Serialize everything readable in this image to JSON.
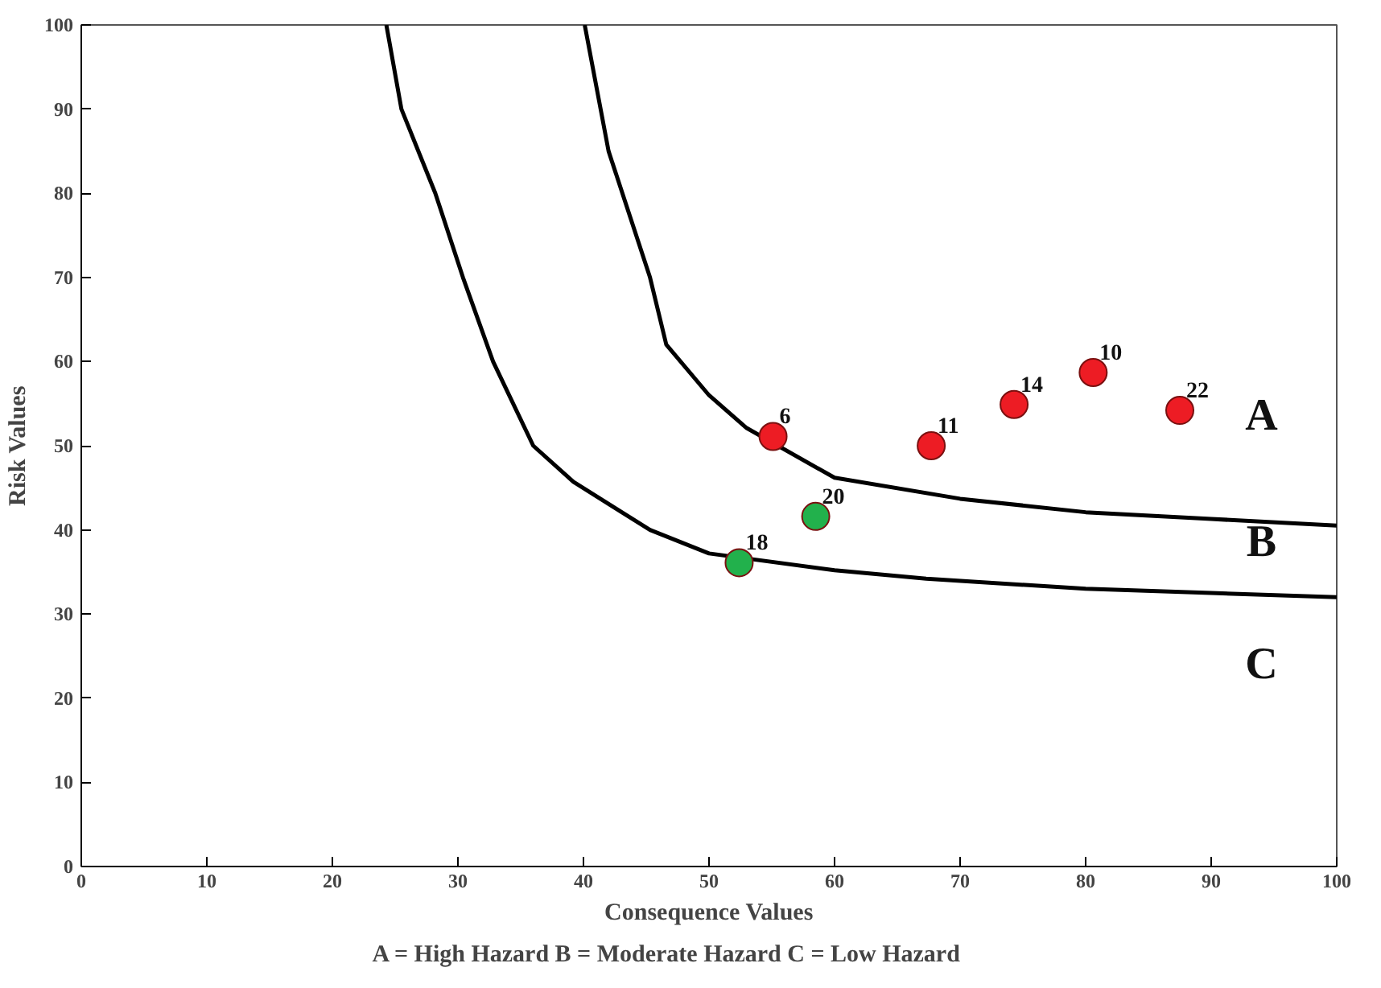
{
  "chart_data": {
    "type": "scatter",
    "xlabel": "Consequence Values",
    "ylabel": "Risk Values",
    "xlim": [
      0,
      100
    ],
    "ylim": [
      0,
      100
    ],
    "xticks": [
      0,
      10,
      20,
      30,
      40,
      50,
      60,
      70,
      80,
      90,
      100
    ],
    "yticks": [
      0,
      10,
      20,
      30,
      40,
      50,
      60,
      70,
      80,
      90,
      100
    ],
    "grid": false,
    "marker": "circle",
    "series": [
      {
        "type": "line",
        "color": "#000000",
        "marker": "none",
        "line_style": "solid",
        "x": [
          40.1,
          42,
          45.3,
          46.6,
          50,
          53,
          60,
          70,
          80,
          90,
          100
        ],
        "values": [
          100,
          85,
          70,
          62,
          56,
          52.1,
          46.2,
          43.7,
          42.1,
          41.3,
          40.5
        ]
      },
      {
        "type": "line",
        "color": "#000000",
        "marker": "none",
        "line_style": "solid",
        "x": [
          24.3,
          25.5,
          28.2,
          30.4,
          32.8,
          36,
          39.2,
          45.3,
          50,
          60,
          67.3,
          80,
          90,
          100
        ],
        "values": [
          100,
          90,
          80,
          70,
          60,
          50,
          45.7,
          40,
          37.2,
          35.2,
          34.2,
          33,
          32.5,
          32
        ]
      },
      {
        "color": "#ed1c24",
        "x": [
          55.1,
          67.7,
          74.3,
          80.6,
          87.5
        ],
        "values": [
          51.1,
          50.0,
          54.9,
          58.7,
          54.2
        ]
      },
      {
        "color": "#22b14c",
        "x": [
          52.4,
          58.5
        ],
        "values": [
          36.1,
          41.6
        ]
      }
    ],
    "annotations": [
      {
        "text": "6",
        "x": 55.1,
        "y": 51.1
      },
      {
        "text": "11",
        "x": 67.7,
        "y": 50.0
      },
      {
        "text": "14",
        "x": 74.3,
        "y": 54.9
      },
      {
        "text": "10",
        "x": 80.6,
        "y": 58.7
      },
      {
        "text": "22",
        "x": 87.5,
        "y": 54.2
      },
      {
        "text": "18",
        "x": 52.4,
        "y": 36.1
      },
      {
        "text": "20",
        "x": 58.5,
        "y": 41.6
      },
      "A",
      "B",
      "C",
      "A = High Hazard        B = Moderate Hazard        C = Low Hazard"
    ]
  }
}
